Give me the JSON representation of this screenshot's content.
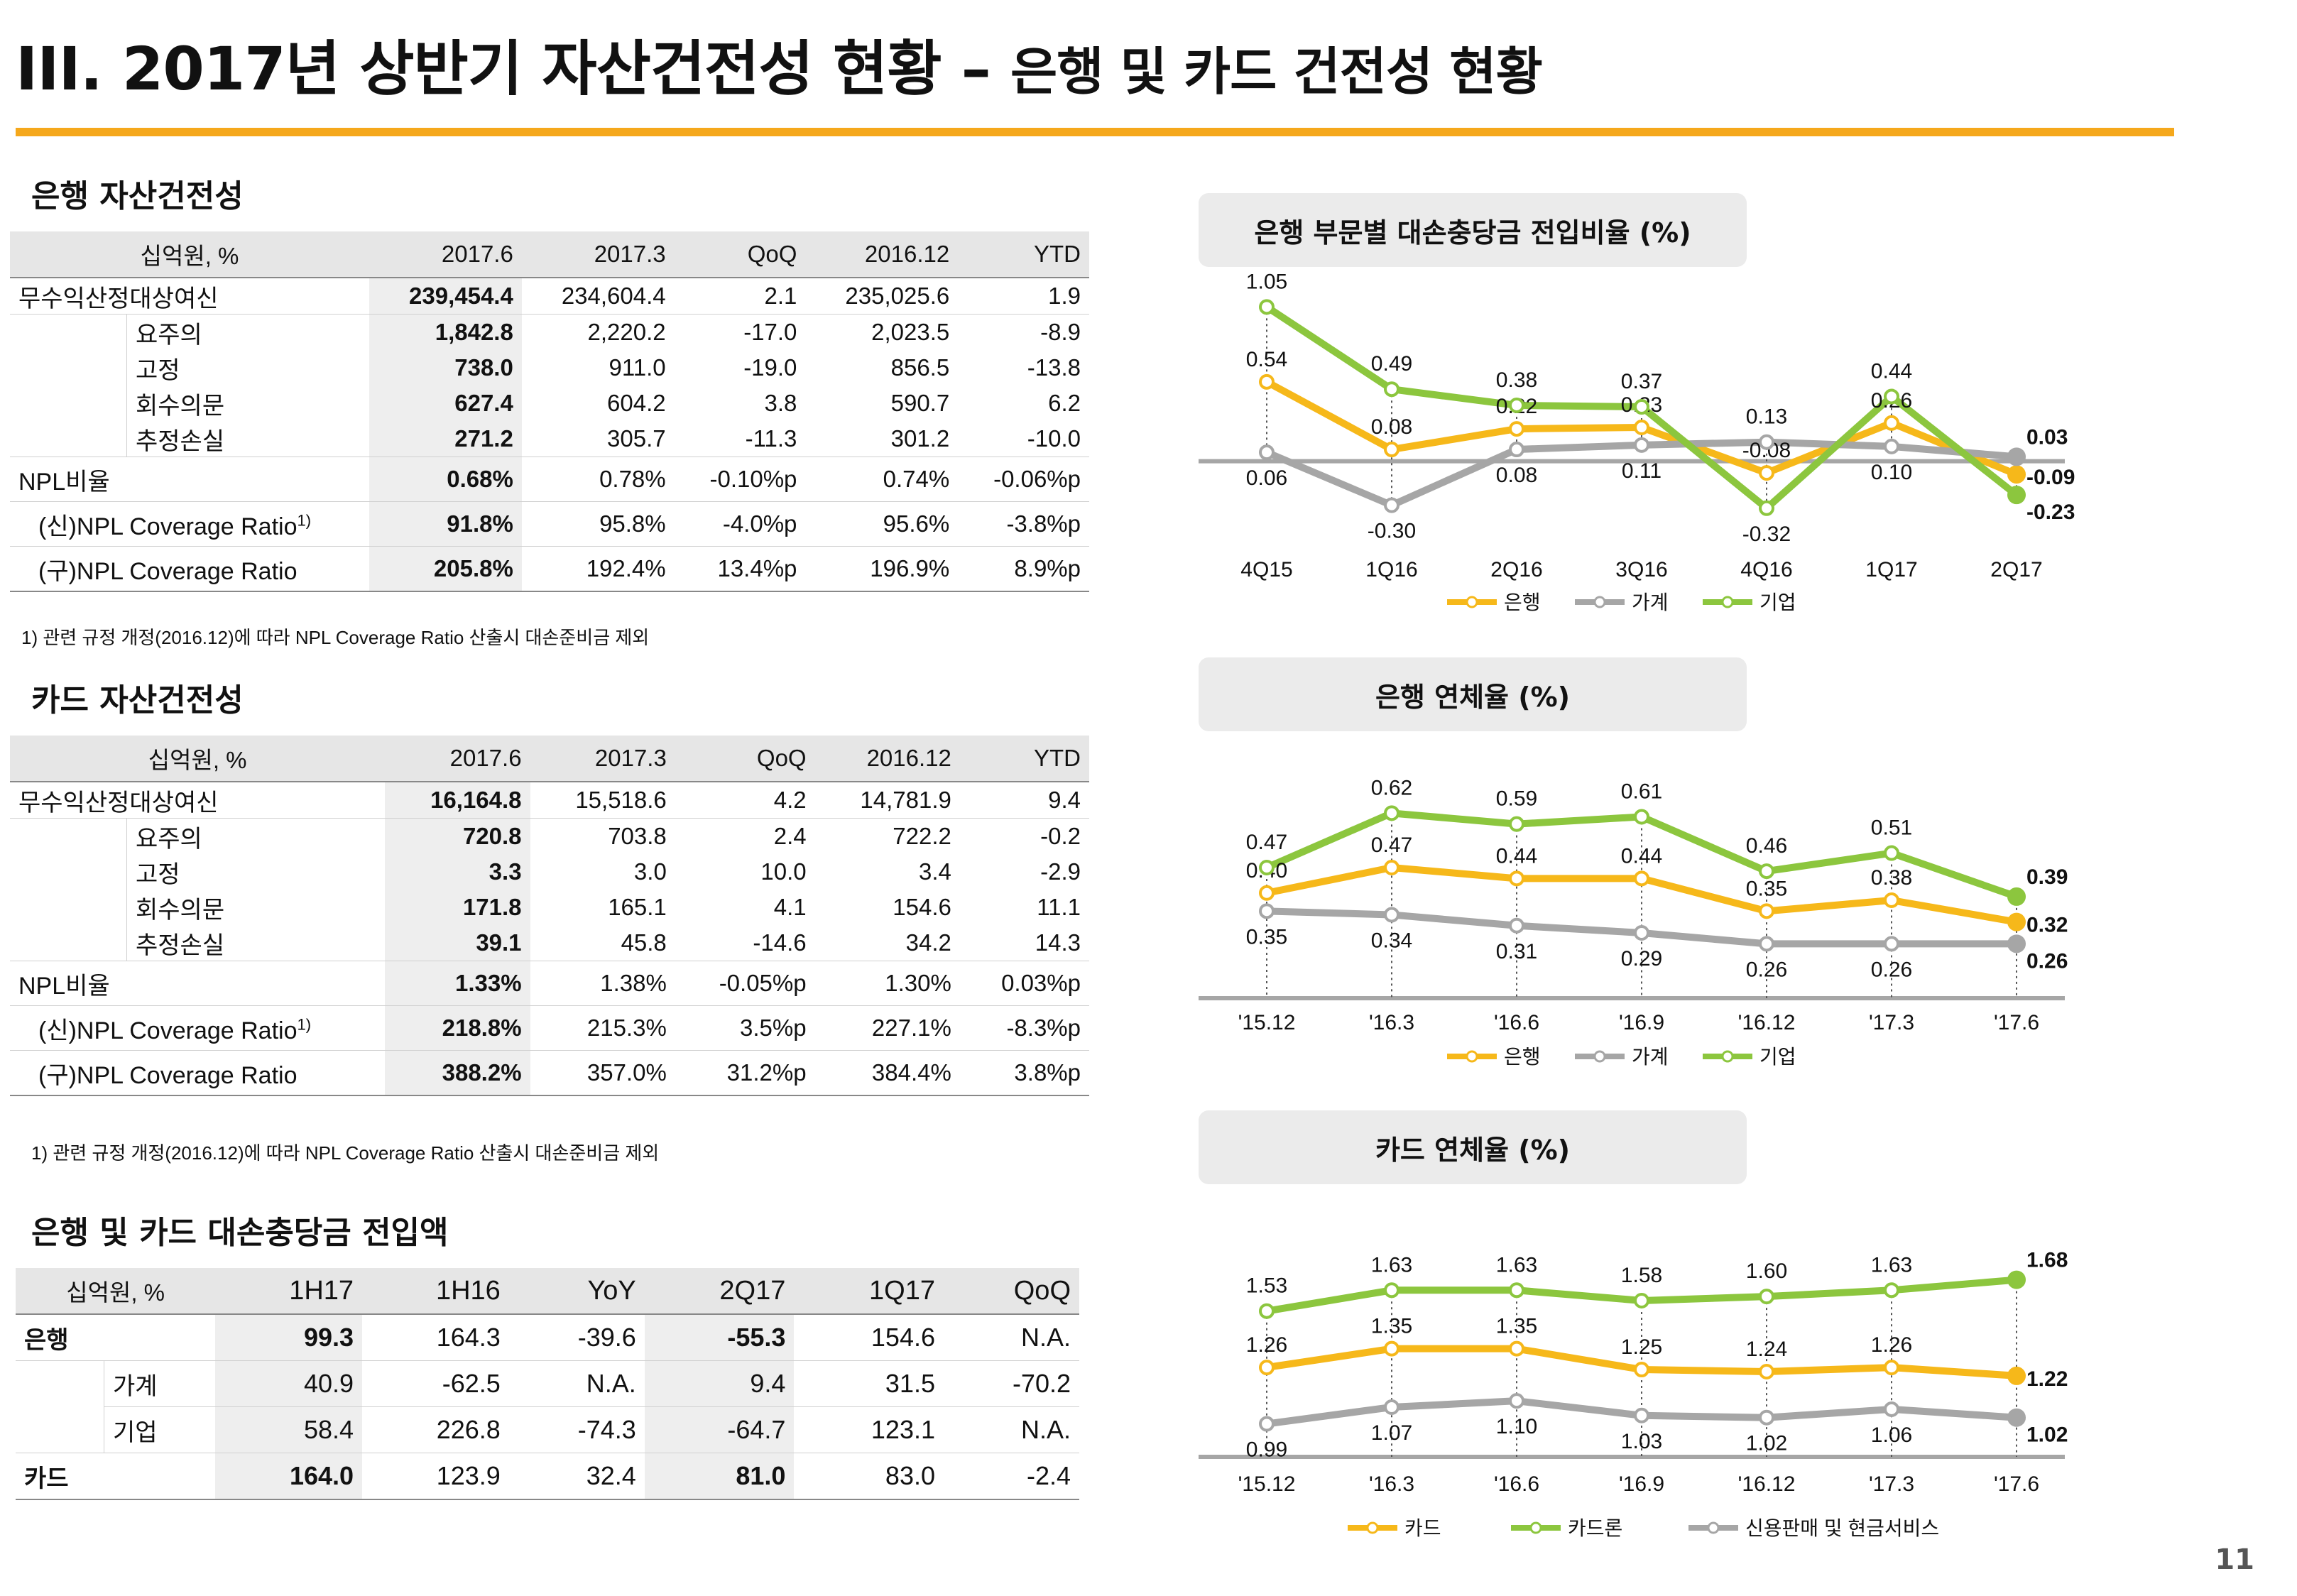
{
  "page": {
    "title_main": "III. 2017년 상반기 자산건전성 현황 – ",
    "title_sub": "은행 및 카드 건전성 현황",
    "page_number": "11",
    "accent_color": "#f5a81c"
  },
  "bank_table": {
    "section_title": "은행 자산건전성",
    "headers": [
      "십억원, %",
      "2017.6",
      "2017.3",
      "QoQ",
      "2016.12",
      "YTD"
    ],
    "rows": [
      {
        "label": "무수익산정대상여신",
        "values": [
          "239,454.4",
          "234,604.4",
          "2.1",
          "235,025.6",
          "1.9"
        ]
      },
      {
        "label": "요주의",
        "values": [
          "1,842.8",
          "2,220.2",
          "-17.0",
          "2,023.5",
          "-8.9"
        ]
      },
      {
        "label": "고정",
        "values": [
          "738.0",
          "911.0",
          "-19.0",
          "856.5",
          "-13.8"
        ]
      },
      {
        "label": "회수의문",
        "values": [
          "627.4",
          "604.2",
          "3.8",
          "590.7",
          "6.2"
        ]
      },
      {
        "label": "추정손실",
        "values": [
          "271.2",
          "305.7",
          "-11.3",
          "301.2",
          "-10.0"
        ]
      },
      {
        "label": "NPL비율",
        "values": [
          "0.68%",
          "0.78%",
          "-0.10%p",
          "0.74%",
          "-0.06%p"
        ]
      },
      {
        "label": "(신)NPL Coverage Ratio",
        "sup": "1)",
        "values": [
          "91.8%",
          "95.8%",
          "-4.0%p",
          "95.6%",
          "-3.8%p"
        ]
      },
      {
        "label": "(구)NPL Coverage Ratio",
        "values": [
          "205.8%",
          "192.4%",
          "13.4%p",
          "196.9%",
          "8.9%p"
        ]
      }
    ],
    "footnote": "1) 관련 규정 개정(2016.12)에 따라 NPL Coverage Ratio 산출시 대손준비금 제외"
  },
  "card_table": {
    "section_title": "카드 자산건전성",
    "headers": [
      "십억원, %",
      "2017.6",
      "2017.3",
      "QoQ",
      "2016.12",
      "YTD"
    ],
    "rows": [
      {
        "label": "무수익산정대상여신",
        "values": [
          "16,164.8",
          "15,518.6",
          "4.2",
          "14,781.9",
          "9.4"
        ]
      },
      {
        "label": "요주의",
        "values": [
          "720.8",
          "703.8",
          "2.4",
          "722.2",
          "-0.2"
        ]
      },
      {
        "label": "고정",
        "values": [
          "3.3",
          "3.0",
          "10.0",
          "3.4",
          "-2.9"
        ]
      },
      {
        "label": "회수의문",
        "values": [
          "171.8",
          "165.1",
          "4.1",
          "154.6",
          "11.1"
        ]
      },
      {
        "label": "추정손실",
        "values": [
          "39.1",
          "45.8",
          "-14.6",
          "34.2",
          "14.3"
        ]
      },
      {
        "label": "NPL비율",
        "values": [
          "1.33%",
          "1.38%",
          "-0.05%p",
          "1.30%",
          "0.03%p"
        ]
      },
      {
        "label": "(신)NPL Coverage Ratio",
        "sup": "1)",
        "values": [
          "218.8%",
          "215.3%",
          "3.5%p",
          "227.1%",
          "-8.3%p"
        ]
      },
      {
        "label": "(구)NPL Coverage Ratio",
        "values": [
          "388.2%",
          "357.0%",
          "31.2%p",
          "384.4%",
          "3.8%p"
        ]
      }
    ],
    "footnote": "1) 관련 규정 개정(2016.12)에 따라 NPL Coverage Ratio 산출시 대손준비금 제외"
  },
  "provision_table": {
    "section_title": "은행 및 카드 대손충당금 전입액",
    "headers": [
      "십억원, %",
      "1H17",
      "1H16",
      "YoY",
      "2Q17",
      "1Q17",
      "QoQ"
    ],
    "rows": [
      {
        "label": "은행",
        "values": [
          "99.3",
          "164.3",
          "-39.6",
          "-55.3",
          "154.6",
          "N.A."
        ]
      },
      {
        "label": "가계",
        "values": [
          "40.9",
          "-62.5",
          "N.A.",
          "9.4",
          "31.5",
          "-70.2"
        ]
      },
      {
        "label": "기업",
        "values": [
          "58.4",
          "226.8",
          "-74.3",
          "-64.7",
          "123.1",
          "N.A."
        ]
      },
      {
        "label": "카드",
        "values": [
          "164.0",
          "123.9",
          "32.4",
          "81.0",
          "83.0",
          "-2.4"
        ]
      }
    ]
  },
  "chart_data": [
    {
      "type": "line",
      "title": "은행 부문별 대손충당금 전입비율 (%)",
      "categories": [
        "4Q15",
        "1Q16",
        "2Q16",
        "3Q16",
        "4Q16",
        "1Q17",
        "2Q17"
      ],
      "series": [
        {
          "name": "은행",
          "color": "#f6b81a",
          "values": [
            0.54,
            0.08,
            0.22,
            0.23,
            -0.08,
            0.26,
            -0.09
          ]
        },
        {
          "name": "가계",
          "color": "#a6a6a6",
          "values": [
            0.06,
            -0.3,
            0.08,
            0.11,
            0.13,
            0.1,
            0.03
          ]
        },
        {
          "name": "기업",
          "color": "#8cc63e",
          "values": [
            1.05,
            0.49,
            0.38,
            0.37,
            -0.32,
            0.44,
            -0.23
          ]
        }
      ],
      "ylim": [
        -0.35,
        1.1
      ]
    },
    {
      "type": "line",
      "title": "은행 연체율 (%)",
      "categories": [
        "'15.12",
        "'16.3",
        "'16.6",
        "'16.9",
        "'16.12",
        "'17.3",
        "'17.6"
      ],
      "series": [
        {
          "name": "은행",
          "color": "#f6b81a",
          "values": [
            0.4,
            0.47,
            0.44,
            0.44,
            0.35,
            0.38,
            0.32
          ]
        },
        {
          "name": "가계",
          "color": "#a6a6a6",
          "values": [
            0.35,
            0.34,
            0.31,
            0.29,
            0.26,
            0.26,
            0.26
          ]
        },
        {
          "name": "기업",
          "color": "#8cc63e",
          "values": [
            0.47,
            0.62,
            0.59,
            0.61,
            0.46,
            0.51,
            0.39
          ]
        }
      ],
      "ylim": [
        0.2,
        0.65
      ]
    },
    {
      "type": "line",
      "title": "카드 연체율 (%)",
      "categories": [
        "'15.12",
        "'16.3",
        "'16.6",
        "'16.9",
        "'16.12",
        "'17.3",
        "'17.6"
      ],
      "series": [
        {
          "name": "카드",
          "color": "#f6b81a",
          "values": [
            1.26,
            1.35,
            1.35,
            1.25,
            1.24,
            1.26,
            1.22
          ]
        },
        {
          "name": "카드론",
          "color": "#8cc63e",
          "values": [
            1.53,
            1.63,
            1.63,
            1.58,
            1.6,
            1.63,
            1.68
          ]
        },
        {
          "name": "신용판매 및 현금서비스",
          "color": "#a6a6a6",
          "values": [
            0.99,
            1.07,
            1.1,
            1.03,
            1.02,
            1.06,
            1.02
          ]
        }
      ],
      "ylim": [
        0.9,
        1.75
      ]
    }
  ]
}
